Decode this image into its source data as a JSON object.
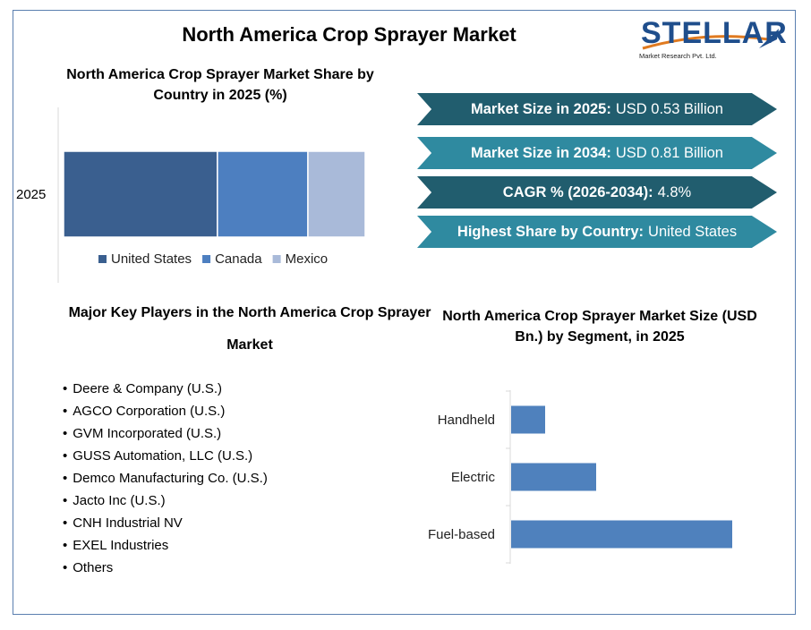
{
  "title": "North America Crop Sprayer Market",
  "logo": {
    "brand": "STELLAR",
    "tagline": "Market Research Pvt. Ltd."
  },
  "banners": [
    {
      "label": "Market Size in 2025:",
      "value": "USD 0.53 Billion"
    },
    {
      "label": "Market Size in 2034:",
      "value": "USD 0.81 Billion"
    },
    {
      "label": "CAGR % (2026-2034):",
      "value": "4.8%"
    },
    {
      "label": "Highest Share by Country:",
      "value": "United States"
    }
  ],
  "players": {
    "title": "Major Key Players in the North America Crop Sprayer Market",
    "items": [
      "Deere & Company (U.S.)",
      "AGCO Corporation (U.S.)",
      "GVM Incorporated (U.S.)",
      "GUSS Automation, LLC (U.S.)",
      "Demco Manufacturing Co. (U.S.)",
      "Jacto Inc (U.S.)",
      "CNH Industrial NV",
      "EXEL Industries",
      "Others"
    ]
  },
  "chart_data": [
    {
      "type": "bar",
      "orientation": "horizontal-stacked-100",
      "title": "North America Crop Sprayer Market Share by Country in 2025 (%)",
      "categories": [
        "2025"
      ],
      "series": [
        {
          "name": "United States",
          "values": [
            51
          ],
          "color": "#3a5f8f"
        },
        {
          "name": "Canada",
          "values": [
            30
          ],
          "color": "#4d7fc0"
        },
        {
          "name": "Mexico",
          "values": [
            19
          ],
          "color": "#a9bad9"
        }
      ],
      "xlim": [
        0,
        100
      ],
      "legend": "bottom",
      "grid": false
    },
    {
      "type": "bar",
      "orientation": "horizontal",
      "title": "North America Crop Sprayer Market Size (USD Bn.) by Segment, in 2025",
      "categories": [
        "Handheld",
        "Electric",
        "Fuel-based"
      ],
      "values": [
        0.04,
        0.1,
        0.26
      ],
      "xlim": [
        0,
        0.3
      ],
      "color": "#4f81bd",
      "grid": false
    }
  ],
  "colors": {
    "banner_dark": "#215d6e",
    "banner_light": "#2f8aa0",
    "frame": "#5b7fb0"
  }
}
